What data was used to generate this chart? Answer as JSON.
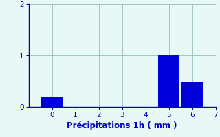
{
  "categories": [
    0,
    1,
    2,
    3,
    4,
    5,
    6,
    7
  ],
  "values": [
    0.2,
    0,
    0,
    0,
    0,
    1.0,
    0.5,
    0
  ],
  "bar_color": "#0000dd",
  "bg_color": "#e8f8f4",
  "axis_color": "#0000cc",
  "grid_color": "#99bbbb",
  "xlabel": "Précipitations 1h ( mm )",
  "xlim": [
    -1,
    7
  ],
  "ylim": [
    0,
    2
  ],
  "yticks": [
    0,
    1,
    2
  ],
  "xticks": [
    0,
    1,
    2,
    3,
    4,
    5,
    6,
    7
  ],
  "bar_width": 0.9,
  "xlabel_fontsize": 8.5,
  "tick_fontsize": 7.5
}
